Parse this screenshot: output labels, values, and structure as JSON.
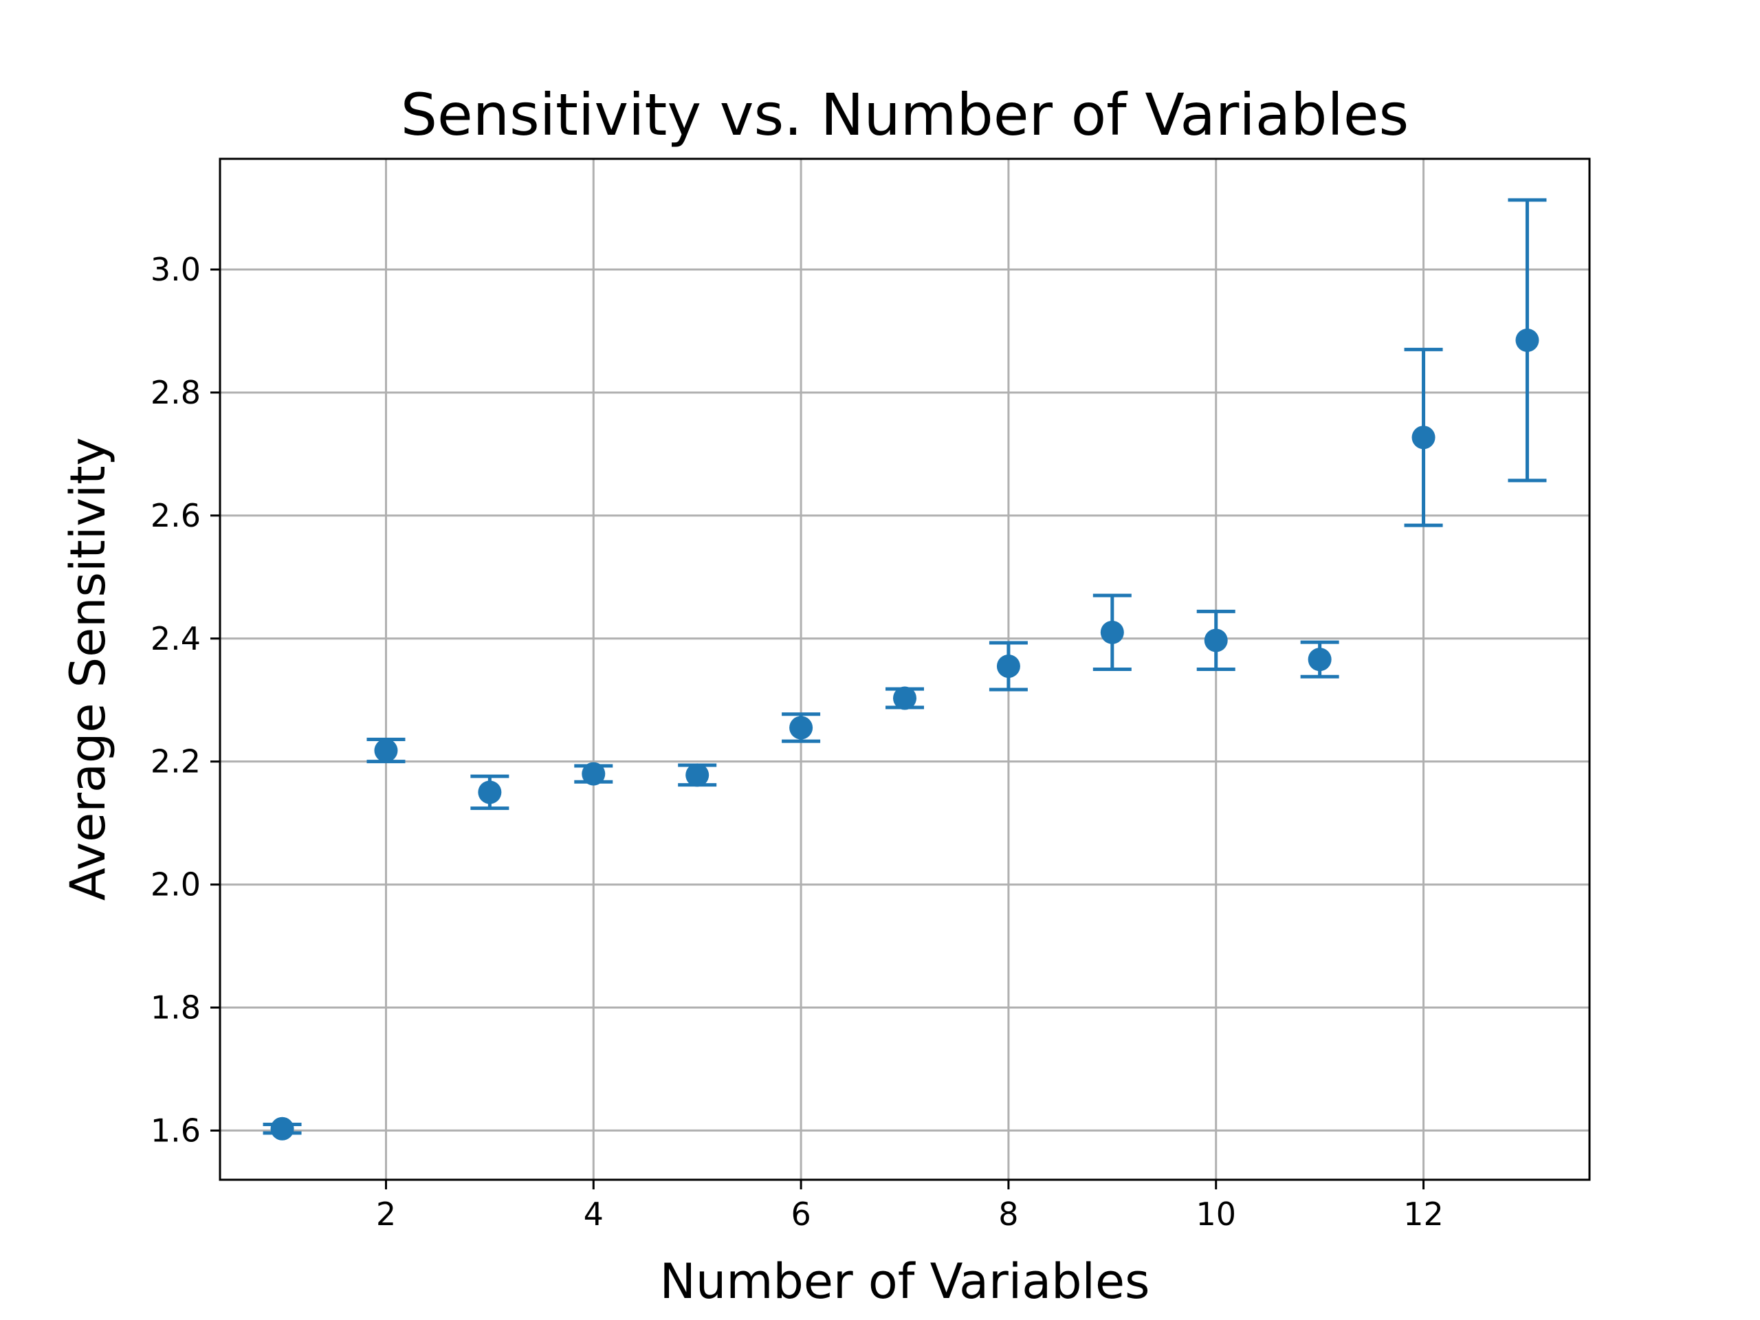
{
  "chart_data": {
    "type": "scatter",
    "title": "Sensitivity vs. Number of Variables",
    "xlabel": "Number of Variables",
    "ylabel": "Average Sensitivity",
    "xlim": [
      0.4,
      13.6
    ],
    "ylim": [
      1.52,
      3.18
    ],
    "xticks": [
      2,
      4,
      6,
      8,
      10,
      12
    ],
    "yticks": [
      1.6,
      1.8,
      2.0,
      2.2,
      2.4,
      2.6,
      2.8,
      3.0
    ],
    "ytick_labels": [
      "1.6",
      "1.8",
      "2.0",
      "2.2",
      "2.4",
      "2.6",
      "2.8",
      "3.0"
    ],
    "grid": true,
    "color": "#1f77b4",
    "series": [
      {
        "x": [
          1,
          2,
          3,
          4,
          5,
          6,
          7,
          8,
          9,
          10,
          11,
          12,
          13
        ],
        "y": [
          1.603,
          2.218,
          2.15,
          2.18,
          2.178,
          2.255,
          2.303,
          2.355,
          2.41,
          2.397,
          2.366,
          2.727,
          2.885
        ],
        "error": [
          0.007,
          0.018,
          0.026,
          0.013,
          0.016,
          0.022,
          0.015,
          0.038,
          0.06,
          0.047,
          0.028,
          0.143,
          0.228
        ]
      }
    ]
  }
}
